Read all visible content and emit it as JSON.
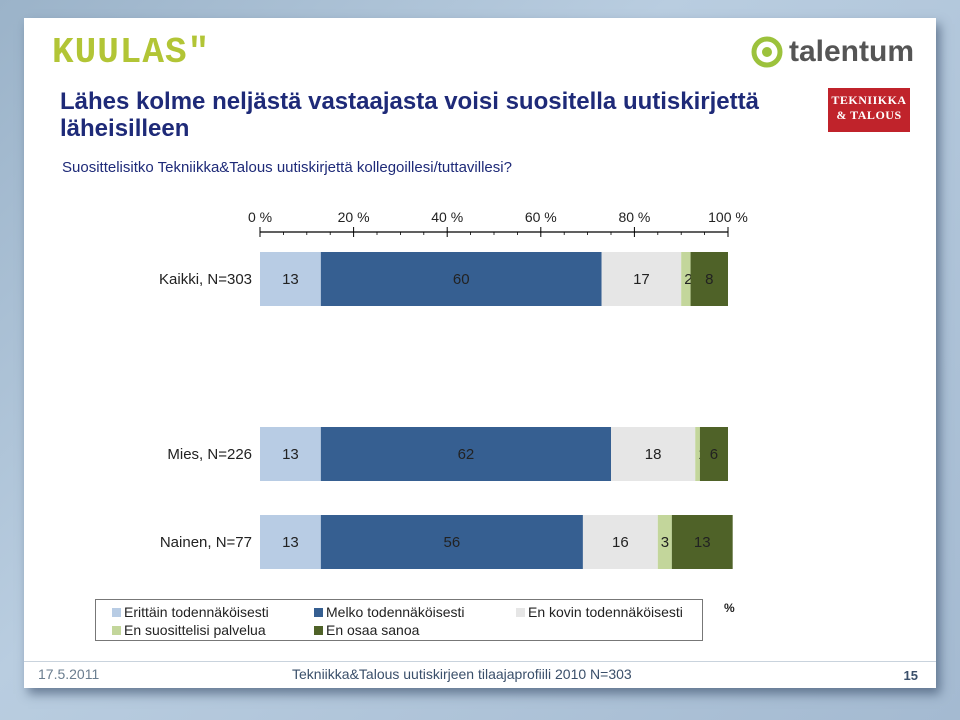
{
  "logos": {
    "kuulas": "KUULAS\"",
    "talentum": "talentum",
    "tekniikka_talous": [
      "TEKNIIKKA",
      "& TALOUS"
    ]
  },
  "header": {
    "title": "Lähes kolme neljästä vastaajasta voisi suositella uutiskirjettä läheisilleen",
    "subtitle": "Suosittelisitko Tekniikka&Talous uutiskirjettä kollegoillesi/tuttavillesi?"
  },
  "chart_data": {
    "type": "bar",
    "orientation": "horizontal",
    "stacked": true,
    "xlim": [
      0,
      100
    ],
    "xticks": [
      "0 %",
      "20 %",
      "40 %",
      "60 %",
      "80 %",
      "100 %"
    ],
    "unit_label": "%",
    "categories": [
      "Kaikki, N=303",
      "Mies, N=226",
      "Nainen, N=77"
    ],
    "series": [
      {
        "name": "Erittäin todennäköisesti",
        "color": "#b8cce4",
        "values": [
          13,
          13,
          13
        ]
      },
      {
        "name": "Melko todennäköisesti",
        "color": "#365f91",
        "values": [
          60,
          62,
          56
        ]
      },
      {
        "name": "En kovin todennäköisesti",
        "color": "#e6e6e6",
        "values": [
          17,
          18,
          16
        ]
      },
      {
        "name": "En suosittelisi palvelua",
        "color": "#c3d69b",
        "values": [
          2,
          1,
          3
        ]
      },
      {
        "name": "En osaa sanoa",
        "color": "#4f6228",
        "values": [
          8,
          6,
          13
        ]
      }
    ],
    "legend": "bottom"
  },
  "footer": {
    "date": "17.5.2011",
    "text": "Tekniikka&Talous uutiskirjeen tilaajaprofiili 2010 N=303",
    "page": "15"
  }
}
